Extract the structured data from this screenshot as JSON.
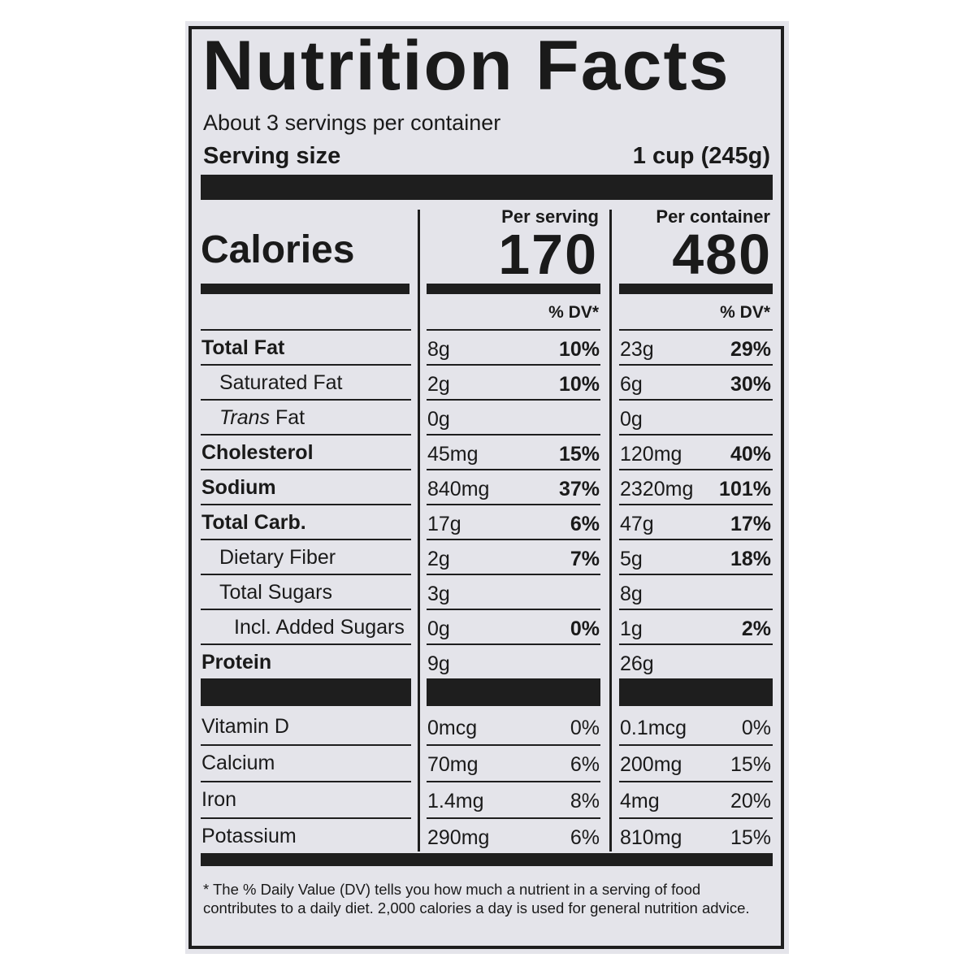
{
  "title": "Nutrition Facts",
  "servings_per_container": "About 3 servings per container",
  "serving_size_label": "Serving size",
  "serving_size_value": "1 cup (245g)",
  "columns": {
    "per_serving": "Per serving",
    "per_container": "Per container"
  },
  "calories_label": "Calories",
  "calories": {
    "per_serving": "170",
    "per_container": "480"
  },
  "dv_header": "% DV*",
  "nutrients": [
    {
      "label": "Total Fat",
      "bold": true,
      "indent": 0,
      "serving_amount": "8g",
      "serving_dv": "10%",
      "container_amount": "23g",
      "container_dv": "29%"
    },
    {
      "label": "Saturated Fat",
      "bold": false,
      "indent": 1,
      "serving_amount": "2g",
      "serving_dv": "10%",
      "container_amount": "6g",
      "container_dv": "30%"
    },
    {
      "label": "Trans Fat",
      "bold": false,
      "indent": 1,
      "italic_prefix": "Trans",
      "serving_amount": "0g",
      "serving_dv": "",
      "container_amount": "0g",
      "container_dv": ""
    },
    {
      "label": "Cholesterol",
      "bold": true,
      "indent": 0,
      "serving_amount": "45mg",
      "serving_dv": "15%",
      "container_amount": "120mg",
      "container_dv": "40%"
    },
    {
      "label": "Sodium",
      "bold": true,
      "indent": 0,
      "serving_amount": "840mg",
      "serving_dv": "37%",
      "container_amount": "2320mg",
      "container_dv": "101%"
    },
    {
      "label": "Total Carb.",
      "bold": true,
      "indent": 0,
      "serving_amount": "17g",
      "serving_dv": "6%",
      "container_amount": "47g",
      "container_dv": "17%"
    },
    {
      "label": "Dietary Fiber",
      "bold": false,
      "indent": 1,
      "serving_amount": "2g",
      "serving_dv": "7%",
      "container_amount": "5g",
      "container_dv": "18%"
    },
    {
      "label": "Total Sugars",
      "bold": false,
      "indent": 1,
      "serving_amount": "3g",
      "serving_dv": "",
      "container_amount": "8g",
      "container_dv": ""
    },
    {
      "label": "Incl. Added Sugars",
      "bold": false,
      "indent": 2,
      "serving_amount": "0g",
      "serving_dv": "0%",
      "container_amount": "1g",
      "container_dv": "2%"
    },
    {
      "label": "Protein",
      "bold": true,
      "indent": 0,
      "serving_amount": "9g",
      "serving_dv": "",
      "container_amount": "26g",
      "container_dv": ""
    }
  ],
  "vitamins": [
    {
      "label": "Vitamin D",
      "serving_amount": "0mcg",
      "serving_dv": "0%",
      "container_amount": "0.1mcg",
      "container_dv": "0%"
    },
    {
      "label": "Calcium",
      "serving_amount": "70mg",
      "serving_dv": "6%",
      "container_amount": "200mg",
      "container_dv": "15%"
    },
    {
      "label": "Iron",
      "serving_amount": "1.4mg",
      "serving_dv": "8%",
      "container_amount": "4mg",
      "container_dv": "20%"
    },
    {
      "label": "Potassium",
      "serving_amount": "290mg",
      "serving_dv": "6%",
      "container_amount": "810mg",
      "container_dv": "15%"
    }
  ],
  "footnote": "* The % Daily Value (DV) tells you how much a nutrient in a serving of food contributes to a daily diet. 2,000 calories a day is used for general nutrition advice.",
  "colors": {
    "panel": "#e4e4ea",
    "ink": "#1e1e1e"
  }
}
